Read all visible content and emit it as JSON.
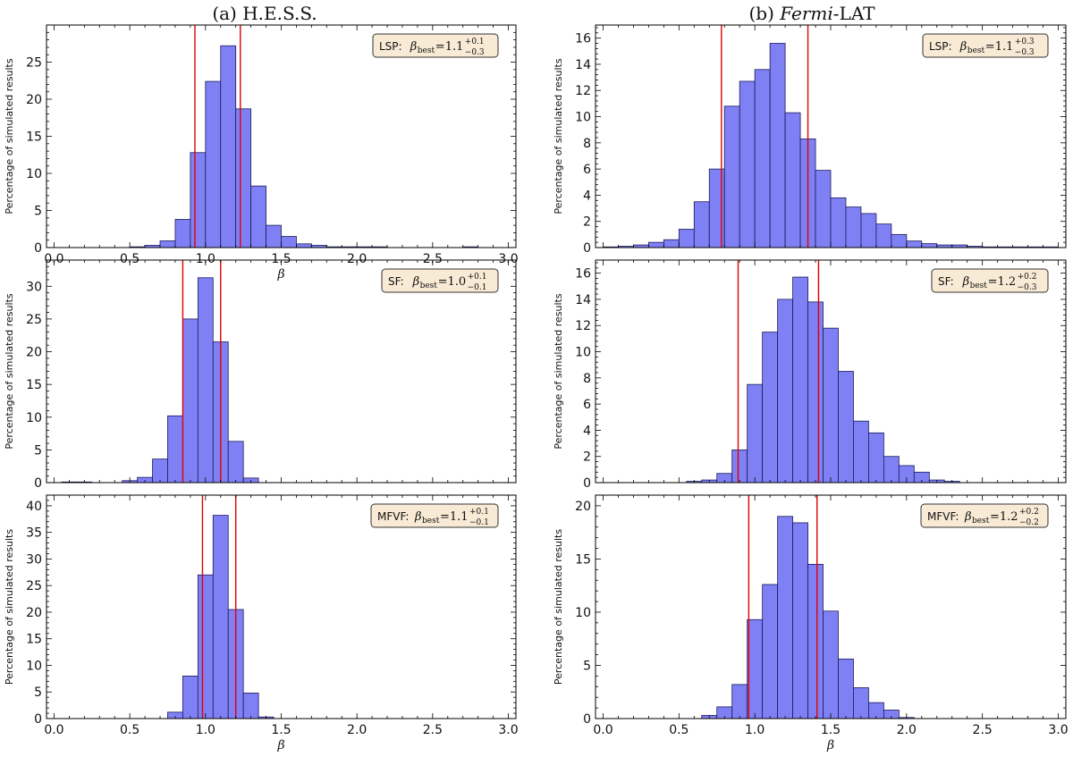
{
  "figure": {
    "col_titles": {
      "left": {
        "prefix": "(a) H.E.S.S.",
        "italic": "",
        "suffix": ""
      },
      "right": {
        "prefix": "(b) ",
        "italic": "Fermi",
        "suffix": "-LAT"
      }
    },
    "ylabel": "Percentage of simulated results",
    "xlabel": "β"
  },
  "chart_data": [
    {
      "type": "bar",
      "id": "hess-lsp",
      "bin_start": 0.0,
      "bin_width": 0.1,
      "values": [
        0,
        0,
        0,
        0,
        0,
        0.1,
        0.3,
        0.9,
        3.8,
        12.8,
        22.4,
        27.2,
        18.7,
        8.3,
        3.0,
        1.5,
        0.5,
        0.3,
        0.1,
        0.1,
        0.1,
        0.1,
        0,
        0,
        0,
        0,
        0,
        0.1,
        0,
        0
      ],
      "xlim": [
        -0.05,
        3.05
      ],
      "ylim": [
        0,
        30
      ],
      "yticks": [
        0,
        5,
        10,
        15,
        20,
        25
      ],
      "xticks": [
        "0.0",
        "0.5",
        "1.0",
        "1.5",
        "2.0",
        "2.5",
        "3.0"
      ],
      "xtick_values": [
        0.0,
        0.5,
        1.0,
        1.5,
        2.0,
        2.5,
        3.0
      ],
      "vlines": [
        0.93,
        1.23
      ],
      "annotation": {
        "label": "LSP:",
        "symbol": "β",
        "sub": "best",
        "relation": "=1.1",
        "sup": "+0.1",
        "subscript_err": "−0.3"
      }
    },
    {
      "type": "bar",
      "id": "hess-sf",
      "bin_start": 0.05,
      "bin_width": 0.1,
      "values": [
        0.1,
        0.1,
        0,
        0,
        0.3,
        0.8,
        3.6,
        10.2,
        25.0,
        31.3,
        21.5,
        6.3,
        0.7,
        0,
        0,
        0,
        0,
        0,
        0,
        0,
        0,
        0,
        0,
        0,
        0,
        0,
        0,
        0,
        0
      ],
      "xlim": [
        -0.05,
        3.05
      ],
      "ylim": [
        0,
        34
      ],
      "yticks": [
        0,
        5,
        10,
        15,
        20,
        25,
        30
      ],
      "xticks": [],
      "xtick_values": [],
      "vlines": [
        0.85,
        1.1
      ],
      "annotation": {
        "label": "SF:",
        "symbol": "β",
        "sub": "best",
        "relation": "=1.0",
        "sup": "+0.1",
        "subscript_err": "−0.1"
      }
    },
    {
      "type": "bar",
      "id": "hess-mfvf",
      "bin_start": 0.05,
      "bin_width": 0.1,
      "values": [
        0,
        0,
        0,
        0,
        0,
        0,
        0,
        1.2,
        8.0,
        27.0,
        38.2,
        20.5,
        4.8,
        0.3,
        0,
        0,
        0,
        0,
        0,
        0,
        0,
        0,
        0,
        0,
        0,
        0,
        0,
        0,
        0
      ],
      "xlim": [
        -0.05,
        3.05
      ],
      "ylim": [
        0,
        42
      ],
      "yticks": [
        0,
        5,
        10,
        15,
        20,
        25,
        30,
        35,
        40
      ],
      "xticks": [
        "0.0",
        "0.5",
        "1.0",
        "1.5",
        "2.0",
        "2.5",
        "3.0"
      ],
      "xtick_values": [
        0.0,
        0.5,
        1.0,
        1.5,
        2.0,
        2.5,
        3.0
      ],
      "vlines": [
        0.98,
        1.2
      ],
      "annotation": {
        "label": "MFVF:",
        "symbol": "β",
        "sub": "best",
        "relation": "=1.1",
        "sup": "+0.1",
        "subscript_err": "−0.1"
      }
    },
    {
      "type": "bar",
      "id": "fermi-lsp",
      "bin_start": 0.0,
      "bin_width": 0.1,
      "values": [
        0.05,
        0.1,
        0.2,
        0.4,
        0.6,
        1.4,
        3.5,
        6.0,
        10.8,
        12.7,
        13.6,
        15.6,
        10.3,
        8.3,
        5.9,
        3.8,
        3.1,
        2.6,
        1.8,
        1.0,
        0.5,
        0.3,
        0.2,
        0.2,
        0.1,
        0.05,
        0.05,
        0.05,
        0.05,
        0.05
      ],
      "xlim": [
        -0.05,
        3.05
      ],
      "ylim": [
        0,
        17
      ],
      "yticks": [
        0,
        2,
        4,
        6,
        8,
        10,
        12,
        14,
        16
      ],
      "xticks": [],
      "xtick_values": [],
      "vlines": [
        0.78,
        1.35
      ],
      "annotation": {
        "label": "LSP:",
        "symbol": "β",
        "sub": "best",
        "relation": "=1.1",
        "sup": "+0.3",
        "subscript_err": "−0.3"
      }
    },
    {
      "type": "bar",
      "id": "fermi-sf",
      "bin_start": 0.15,
      "bin_width": 0.1,
      "values": [
        0,
        0,
        0,
        0,
        0.1,
        0.2,
        0.7,
        2.5,
        7.5,
        11.5,
        14.0,
        15.7,
        13.8,
        11.8,
        8.5,
        4.7,
        3.8,
        2.0,
        1.3,
        0.8,
        0.2,
        0.1,
        0,
        0,
        0,
        0,
        0
      ],
      "xlim": [
        -0.05,
        3.05
      ],
      "ylim": [
        0,
        17
      ],
      "yticks": [
        0,
        2,
        4,
        6,
        8,
        10,
        12,
        14,
        16
      ],
      "xticks": [],
      "xtick_values": [],
      "vlines": [
        0.89,
        1.42
      ],
      "annotation": {
        "label": "SF:",
        "symbol": "β",
        "sub": "best",
        "relation": "=1.2",
        "sup": "+0.2",
        "subscript_err": "−0.3"
      }
    },
    {
      "type": "bar",
      "id": "fermi-mfvf",
      "bin_start": 0.15,
      "bin_width": 0.1,
      "values": [
        0,
        0,
        0,
        0,
        0,
        0.3,
        1.1,
        3.2,
        9.3,
        12.6,
        19.0,
        18.4,
        14.5,
        10.1,
        5.6,
        2.9,
        1.5,
        0.8,
        0.1,
        0,
        0,
        0,
        0,
        0,
        0,
        0,
        0
      ],
      "xlim": [
        -0.05,
        3.05
      ],
      "ylim": [
        0,
        21
      ],
      "yticks": [
        0,
        5,
        10,
        15,
        20
      ],
      "xticks": [
        "0.0",
        "0.5",
        "1.0",
        "1.5",
        "2.0",
        "2.5",
        "3.0"
      ],
      "xtick_values": [
        0.0,
        0.5,
        1.0,
        1.5,
        2.0,
        2.5,
        3.0
      ],
      "vlines": [
        0.96,
        1.41
      ],
      "annotation": {
        "label": "MFVF:",
        "symbol": "β",
        "sub": "best",
        "relation": "=1.2",
        "sup": "+0.2",
        "subscript_err": "−0.2"
      }
    }
  ],
  "style": {
    "bar_fill": "#8080f5",
    "bar_edge": "#1a1a5a",
    "vline_color": "#e00000",
    "annotation_bg": "#f8ead5",
    "annotation_border": "#333333"
  }
}
